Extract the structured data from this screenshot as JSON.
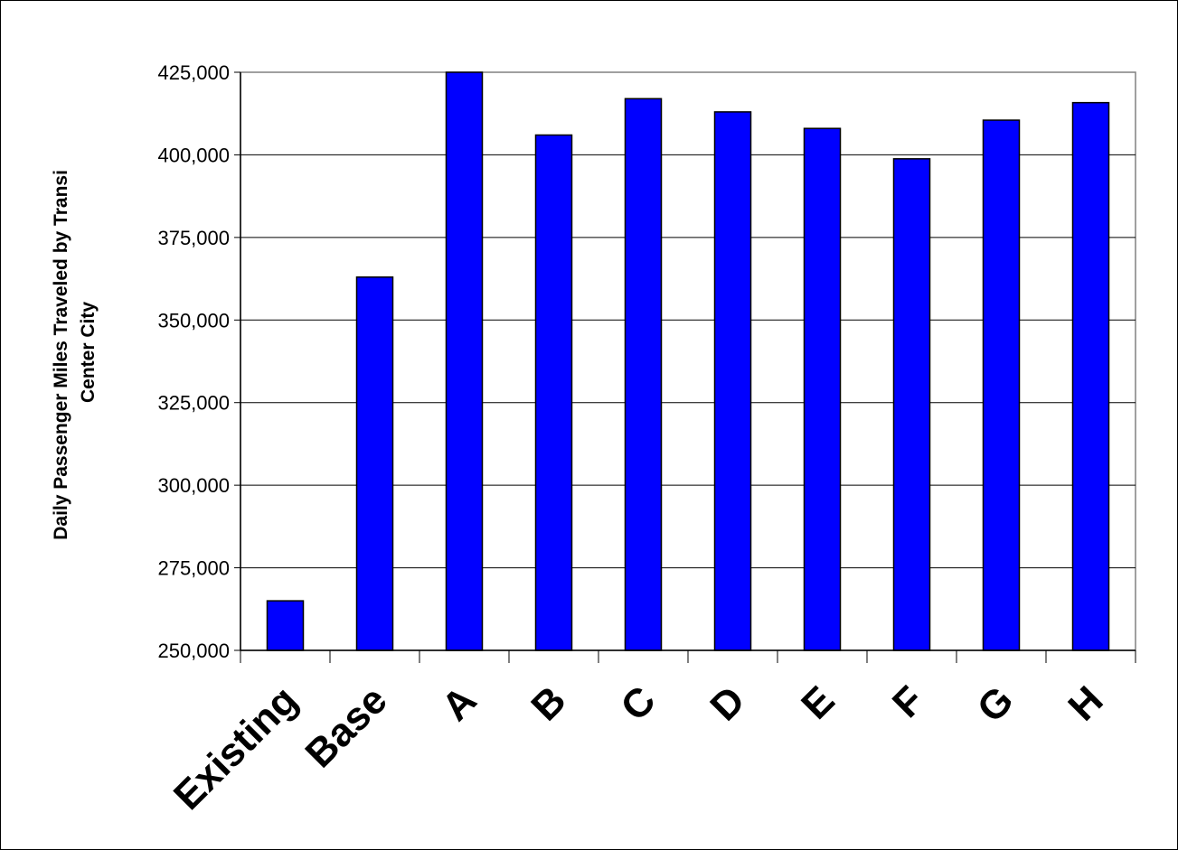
{
  "chart_data": {
    "type": "bar",
    "title": "",
    "xlabel": "",
    "ylabel_lines": [
      "Daily Passenger Miles Traveled by Transi",
      "Center City"
    ],
    "categories": [
      "Existing",
      "Base",
      "A",
      "B",
      "C",
      "D",
      "E",
      "F",
      "G",
      "H"
    ],
    "values": [
      265000,
      363000,
      425000,
      406000,
      417000,
      413000,
      408000,
      398800,
      410500,
      415800
    ],
    "ylim": [
      250000,
      425000
    ],
    "yticks": [
      250000,
      275000,
      300000,
      325000,
      350000,
      375000,
      400000,
      425000
    ],
    "ytick_labels": [
      "250,000",
      "275,000",
      "300,000",
      "325,000",
      "350,000",
      "375,000",
      "400,000",
      "425,000"
    ],
    "grid": true,
    "legend": "none",
    "bar_color": "#0000FF"
  }
}
